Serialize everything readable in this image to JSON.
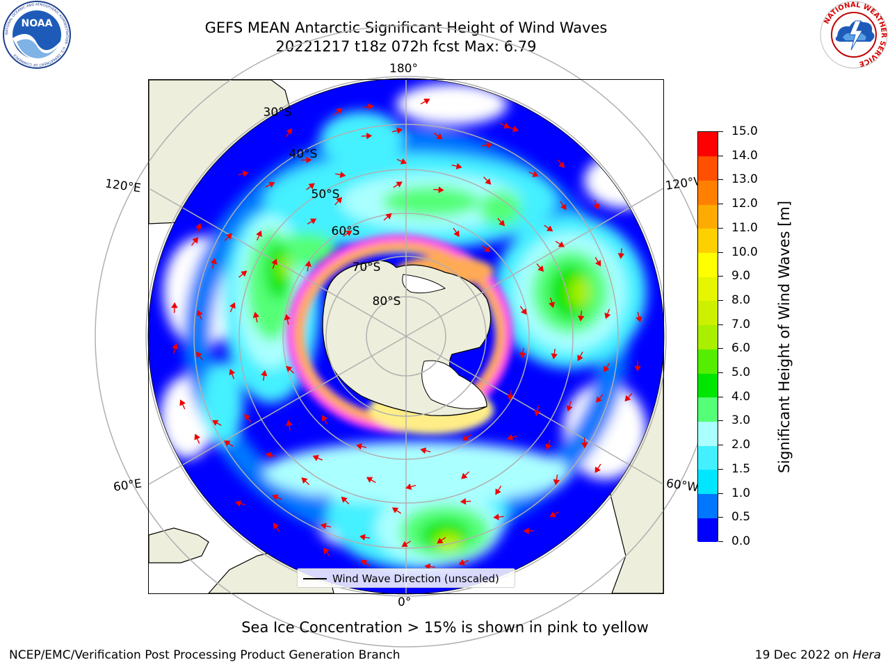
{
  "header": {
    "title_line1": "GEFS MEAN Antarctic Significant Height of Wind Waves",
    "title_line2": "20221217 t18z 072h fcst   Max: 6.79",
    "noaa_logo_text": "NOAA",
    "noaa_logo_ring_text": "NATIONAL OCEANIC AND ATMOSPHERIC ADMINISTRATION · U.S. DEPARTMENT OF COMMERCE",
    "nws_logo_ring_text": "NATIONAL WEATHER SERVICE"
  },
  "map": {
    "projection": "south polar stereographic",
    "longitude_labels": {
      "top": "180°",
      "bottom": "0°",
      "left_upper": "120°E",
      "left_lower": "60°E",
      "right_upper": "120°W",
      "right_lower": "60°W"
    },
    "latitude_labels": [
      "30°S",
      "40°S",
      "50°S",
      "60°S",
      "70°S",
      "80°S"
    ],
    "land_color": "#eeeedc",
    "sea_ice_colors": [
      "#ff44ee",
      "#ffaa55",
      "#ffee88"
    ],
    "arrow_color": "#ee0000",
    "legend_label": "Wind Wave Direction (unscaled)"
  },
  "colorbar": {
    "title": "Significant Height of Wind Waves [m]",
    "ticks": [
      "0.0",
      "0.5",
      "1.0",
      "1.5",
      "2.0",
      "3.0",
      "4.0",
      "5.0",
      "6.0",
      "7.0",
      "8.0",
      "9.0",
      "10.0",
      "11.0",
      "12.0",
      "13.0",
      "14.0",
      "15.0"
    ],
    "colors": [
      "#0000ff",
      "#0077ff",
      "#00e6ff",
      "#44f0ff",
      "#aaffff",
      "#55ff77",
      "#00e600",
      "#55ee00",
      "#aaee00",
      "#ccf000",
      "#e6f500",
      "#ffff00",
      "#ffd000",
      "#ffaa00",
      "#ff8000",
      "#ff5000",
      "#ff0000"
    ]
  },
  "footer": {
    "subtitle": "Sea Ice Concentration > 15% is shown in pink to yellow",
    "credit": "NCEP/EMC/Verification Post Processing Product Generation Branch",
    "date": "19 Dec 2022 on",
    "host": "Hera"
  }
}
